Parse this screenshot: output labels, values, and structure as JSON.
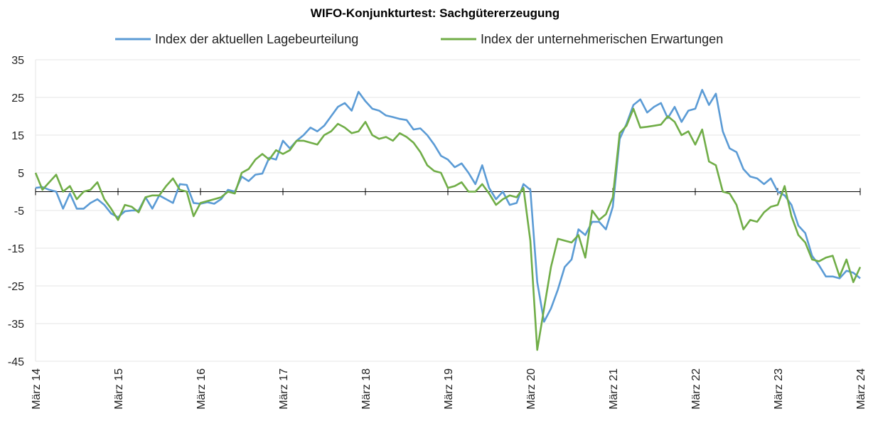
{
  "chart_data": {
    "type": "line",
    "title": "WIFO-Konjunkturtest: Sachgütererzeugung",
    "xlabel": "",
    "ylabel": "",
    "ylim": [
      -45,
      35
    ],
    "yticks": [
      35,
      25,
      15,
      5,
      -5,
      -15,
      -25,
      -35,
      -45
    ],
    "ytick_labels": [
      "35",
      "25",
      "15",
      "5",
      "-5",
      "-15",
      "-25",
      "-35",
      "-45"
    ],
    "x_start": "2014-03",
    "x_end": "2024-03",
    "xtick_labels": [
      "März 14",
      "März 15",
      "März 16",
      "März 17",
      "März 18",
      "März 19",
      "März 20",
      "März 21",
      "März 22",
      "März 23",
      "März 24"
    ],
    "grid": true,
    "legend_position": "top",
    "colors": {
      "lage": "#5b9bd5",
      "erwartungen": "#70ad47"
    },
    "series": [
      {
        "name": "Index der aktuellen Lagebeurteilung",
        "color": "#5b9bd5",
        "values": [
          1.0,
          1.2,
          0.5,
          0.0,
          -4.5,
          -0.5,
          -4.5,
          -4.5,
          -3.0,
          -2.0,
          -3.5,
          -5.8,
          -6.8,
          -5.2,
          -5.0,
          -5.0,
          -1.5,
          -4.5,
          -1.0,
          -2.0,
          -3.0,
          2.0,
          1.8,
          -3.0,
          -3.2,
          -2.8,
          -3.2,
          -2.0,
          0.5,
          0.0,
          4.0,
          2.8,
          4.5,
          4.8,
          9.0,
          8.5,
          13.5,
          11.5,
          13.5,
          15.0,
          17.0,
          16.0,
          17.5,
          20.0,
          22.5,
          23.5,
          21.5,
          26.5,
          24.0,
          22.0,
          21.5,
          20.2,
          19.8,
          19.3,
          19.0,
          16.5,
          16.8,
          15.0,
          12.5,
          9.5,
          8.5,
          6.5,
          7.5,
          5.0,
          2.0,
          7.0,
          1.0,
          -2.0,
          0.0,
          -3.5,
          -3.0,
          2.0,
          0.5,
          -24.0,
          -34.5,
          -31.0,
          -26.0,
          -20.0,
          -18.0,
          -10.0,
          -11.5,
          -8.0,
          -8.0,
          -10.0,
          -4.0,
          14.0,
          18.0,
          23.0,
          24.5,
          21.0,
          22.5,
          23.5,
          19.5,
          22.5,
          18.5,
          21.5,
          22.0,
          27.0,
          23.0,
          26.0,
          16.0,
          11.5,
          10.5,
          6.0,
          4.0,
          3.5,
          2.0,
          3.5,
          0.0,
          -1.0,
          -3.5,
          -9.0,
          -11.0,
          -17.0,
          -19.5,
          -22.5,
          -22.5,
          -23.0,
          -21.0,
          -21.5,
          -23.0
        ]
      },
      {
        "name": "Index der unternehmerischen Erwartungen",
        "color": "#70ad47",
        "values": [
          5.0,
          0.5,
          2.5,
          4.5,
          0.0,
          1.5,
          -2.0,
          0.0,
          0.5,
          2.5,
          -2.0,
          -4.5,
          -7.5,
          -3.5,
          -4.0,
          -5.5,
          -1.5,
          -1.0,
          -1.0,
          1.5,
          3.5,
          0.5,
          0.0,
          -6.5,
          -3.0,
          -2.5,
          -2.0,
          -1.5,
          0.0,
          -0.5,
          5.0,
          6.0,
          8.5,
          10.0,
          8.5,
          11.0,
          10.0,
          11.0,
          13.5,
          13.5,
          13.0,
          12.5,
          15.0,
          16.0,
          18.0,
          17.0,
          15.5,
          16.0,
          18.5,
          15.0,
          14.0,
          14.5,
          13.5,
          15.5,
          14.5,
          13.0,
          10.5,
          7.0,
          5.5,
          5.0,
          1.0,
          1.5,
          2.5,
          0.0,
          0.0,
          2.0,
          -0.5,
          -3.5,
          -2.0,
          -1.0,
          -1.5,
          1.0,
          -13.0,
          -42.0,
          -31.0,
          -20.0,
          -12.5,
          -13.0,
          -13.5,
          -11.5,
          -17.5,
          -5.0,
          -7.5,
          -6.0,
          -1.5,
          15.5,
          17.5,
          22.0,
          17.0,
          17.2,
          17.5,
          17.8,
          20.0,
          18.5,
          15.0,
          16.0,
          12.5,
          16.5,
          8.0,
          7.0,
          0.0,
          -0.5,
          -3.5,
          -10.0,
          -7.5,
          -8.0,
          -5.5,
          -4.0,
          -3.5,
          1.5,
          -6.5,
          -11.5,
          -13.5,
          -18.0,
          -18.5,
          -17.5,
          -17.0,
          -22.5,
          -18.0,
          -24.0,
          -20.0
        ]
      }
    ]
  }
}
